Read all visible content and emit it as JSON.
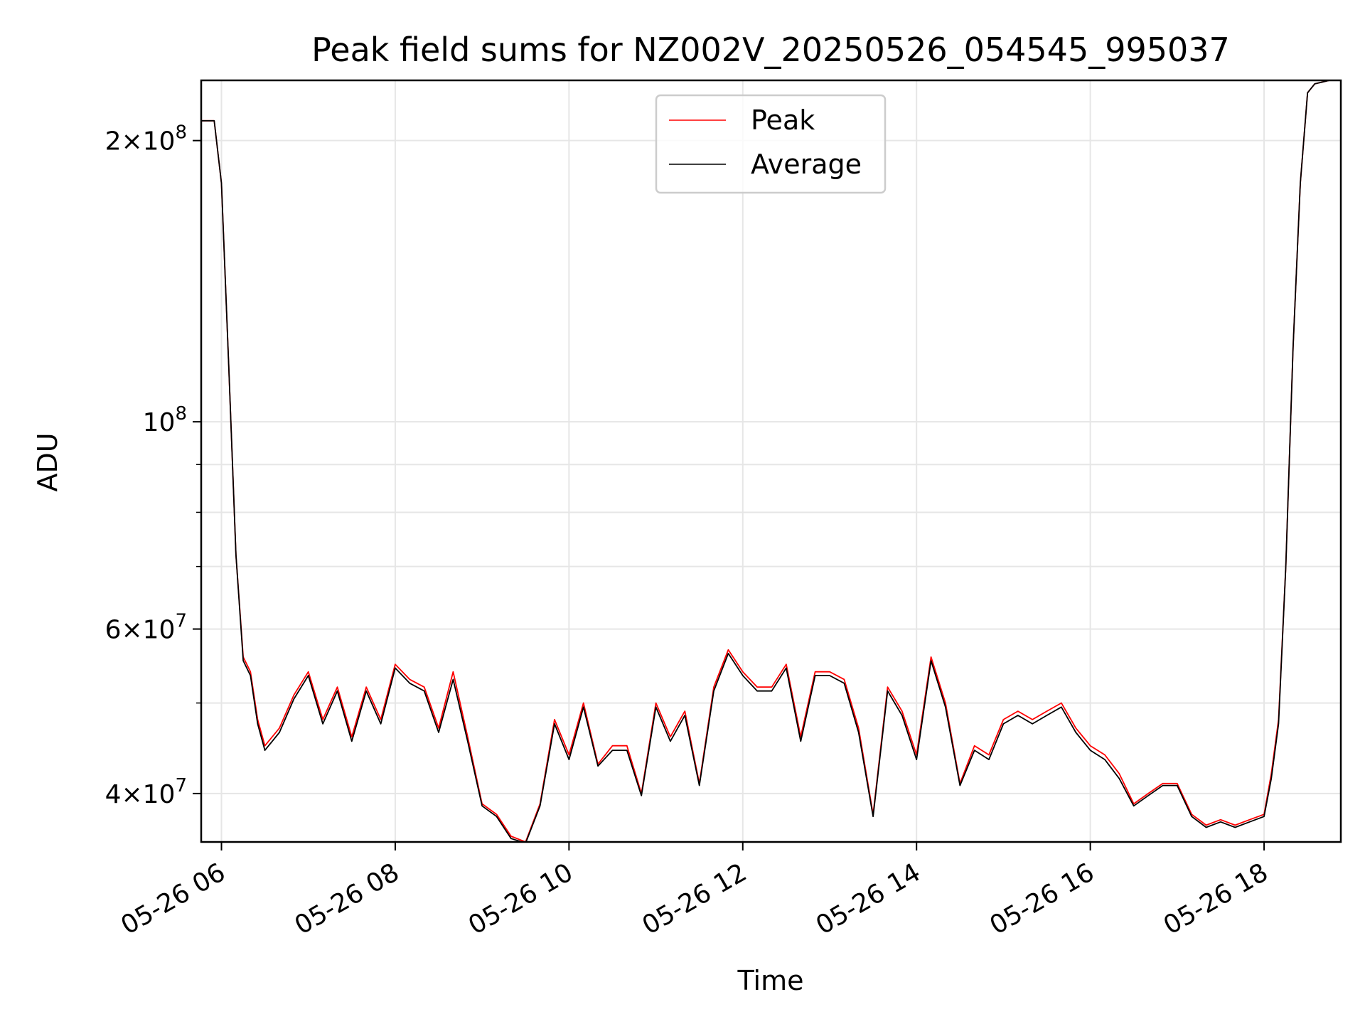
{
  "chart_data": {
    "type": "line",
    "title": "Peak field sums for NZ002V_20250526_054545_995037",
    "xlabel": "Time",
    "ylabel": "ADU",
    "y_scale": "log",
    "xlim": [
      "2025-05-26 05:46",
      "2025-05-26 18:53"
    ],
    "ylim": [
      35500000,
      232000000
    ],
    "grid": true,
    "legend_position": "top-center",
    "x_tick_labels": [
      "05-26 06",
      "05-26 08",
      "05-26 10",
      "05-26 12",
      "05-26 14",
      "05-26 16",
      "05-26 18"
    ],
    "x_ticks": [
      "2025-05-26 06:00",
      "2025-05-26 08:00",
      "2025-05-26 10:00",
      "2025-05-26 12:00",
      "2025-05-26 14:00",
      "2025-05-26 16:00",
      "2025-05-26 18:00"
    ],
    "y_tick_labels": [
      {
        "value": 40000000,
        "mantissa": "4",
        "exp": "7"
      },
      {
        "value": 60000000,
        "mantissa": "6",
        "exp": "7"
      },
      {
        "value": 100000000,
        "mantissa": "",
        "exp": "8"
      },
      {
        "value": 200000000,
        "mantissa": "2",
        "exp": "8"
      }
    ],
    "y_minor_ticks": [
      50000000,
      70000000,
      80000000,
      90000000
    ],
    "x": [
      "05:46",
      "05:55",
      "06:00",
      "06:05",
      "06:10",
      "06:15",
      "06:20",
      "06:25",
      "06:30",
      "06:40",
      "06:50",
      "07:00",
      "07:10",
      "07:20",
      "07:30",
      "07:40",
      "07:50",
      "08:00",
      "08:10",
      "08:20",
      "08:30",
      "08:40",
      "08:50",
      "09:00",
      "09:10",
      "09:20",
      "09:30",
      "09:40",
      "09:50",
      "10:00",
      "10:10",
      "10:20",
      "10:30",
      "10:40",
      "10:50",
      "11:00",
      "11:10",
      "11:20",
      "11:30",
      "11:40",
      "11:50",
      "12:00",
      "12:10",
      "12:20",
      "12:30",
      "12:40",
      "12:50",
      "13:00",
      "13:10",
      "13:20",
      "13:30",
      "13:40",
      "13:50",
      "14:00",
      "14:10",
      "14:20",
      "14:30",
      "14:40",
      "14:50",
      "15:00",
      "15:10",
      "15:20",
      "15:30",
      "15:40",
      "15:50",
      "16:00",
      "16:10",
      "16:20",
      "16:30",
      "16:40",
      "16:50",
      "17:00",
      "17:10",
      "17:20",
      "17:30",
      "17:40",
      "17:50",
      "18:00",
      "18:05",
      "18:10",
      "18:15",
      "18:20",
      "18:25",
      "18:30",
      "18:35",
      "18:40",
      "18:45",
      "18:50",
      "18:53"
    ],
    "series": [
      {
        "name": "Peak",
        "color": "#ff0000",
        "values": [
          210000000,
          210000000,
          180000000,
          115000000,
          72000000,
          56000000,
          54000000,
          48000000,
          45000000,
          47000000,
          51000000,
          54000000,
          48000000,
          52000000,
          46000000,
          52000000,
          48000000,
          55000000,
          53000000,
          52000000,
          47000000,
          54000000,
          46000000,
          39000000,
          38000000,
          36000000,
          35500000,
          39000000,
          48000000,
          44000000,
          50000000,
          43000000,
          45000000,
          45000000,
          40000000,
          50000000,
          46000000,
          49000000,
          41000000,
          52000000,
          57000000,
          54000000,
          52000000,
          52000000,
          55000000,
          46000000,
          54000000,
          54000000,
          53000000,
          47000000,
          38000000,
          52000000,
          49000000,
          44000000,
          56000000,
          50000000,
          41000000,
          45000000,
          44000000,
          48000000,
          49000000,
          48000000,
          49000000,
          50000000,
          47000000,
          45000000,
          44000000,
          42000000,
          39000000,
          40000000,
          41000000,
          41000000,
          38000000,
          37000000,
          37500000,
          37000000,
          37500000,
          38000000,
          42000000,
          48000000,
          70000000,
          120000000,
          180000000,
          225000000,
          230000000,
          231000000,
          232000000,
          232000000,
          232000000
        ]
      },
      {
        "name": "Average",
        "color": "#000000",
        "values": [
          210000000,
          210000000,
          180000000,
          115000000,
          72000000,
          55500000,
          53500000,
          47500000,
          44500000,
          46500000,
          50500000,
          53500000,
          47500000,
          51500000,
          45500000,
          51500000,
          47500000,
          54500000,
          52500000,
          51500000,
          46500000,
          53000000,
          45500000,
          38800000,
          37800000,
          35800000,
          35400000,
          38800000,
          47500000,
          43500000,
          49500000,
          42800000,
          44500000,
          44500000,
          39800000,
          49500000,
          45500000,
          48500000,
          40800000,
          51500000,
          56500000,
          53500000,
          51500000,
          51500000,
          54500000,
          45500000,
          53500000,
          53500000,
          52500000,
          46500000,
          37800000,
          51500000,
          48500000,
          43500000,
          55500000,
          49500000,
          40800000,
          44500000,
          43500000,
          47500000,
          48500000,
          47500000,
          48500000,
          49500000,
          46500000,
          44500000,
          43500000,
          41500000,
          38800000,
          39800000,
          40800000,
          40800000,
          37800000,
          36800000,
          37300000,
          36800000,
          37300000,
          37800000,
          41500000,
          47500000,
          70000000,
          120000000,
          180000000,
          225000000,
          230000000,
          231000000,
          232000000,
          232000000,
          232000000
        ]
      }
    ]
  }
}
